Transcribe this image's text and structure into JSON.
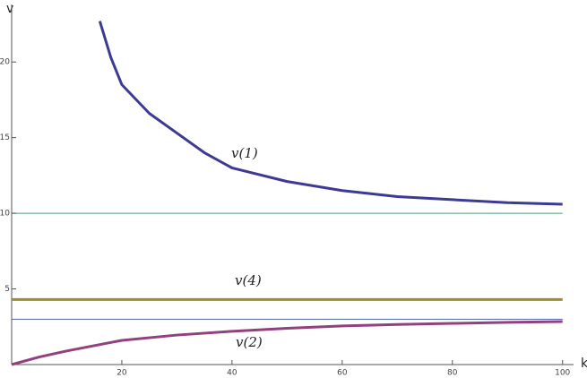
{
  "chart_data": {
    "type": "line",
    "xlabel": "k",
    "ylabel": "v",
    "xlim": [
      0,
      102
    ],
    "ylim": [
      0,
      23.8
    ],
    "xticks": [
      20,
      40,
      60,
      80,
      100
    ],
    "yticks": [
      5,
      10,
      15,
      20
    ],
    "hlines": [
      {
        "value": 10,
        "color": "#4a9a7a"
      },
      {
        "value": 3,
        "color": "#4a6aa8"
      }
    ],
    "series": [
      {
        "name": "v(1)",
        "color": "#3d3a94",
        "x": [
          16,
          18,
          20,
          25,
          30,
          35,
          40,
          50,
          60,
          70,
          80,
          90,
          100
        ],
        "values": [
          22.7,
          20.3,
          18.5,
          16.6,
          15.3,
          14.0,
          13.0,
          12.1,
          11.5,
          11.1,
          10.9,
          10.7,
          10.6
        ]
      },
      {
        "name": "v(4)",
        "color": "#a08a30",
        "x": [
          0,
          100
        ],
        "values": [
          4.3,
          4.3
        ]
      },
      {
        "name": "v(2)",
        "color": "#93407e",
        "x": [
          0,
          5,
          10,
          20,
          30,
          40,
          50,
          60,
          70,
          80,
          90,
          100
        ],
        "values": [
          0,
          0.5,
          0.9,
          1.6,
          1.95,
          2.2,
          2.4,
          2.55,
          2.65,
          2.72,
          2.79,
          2.84
        ]
      }
    ]
  }
}
